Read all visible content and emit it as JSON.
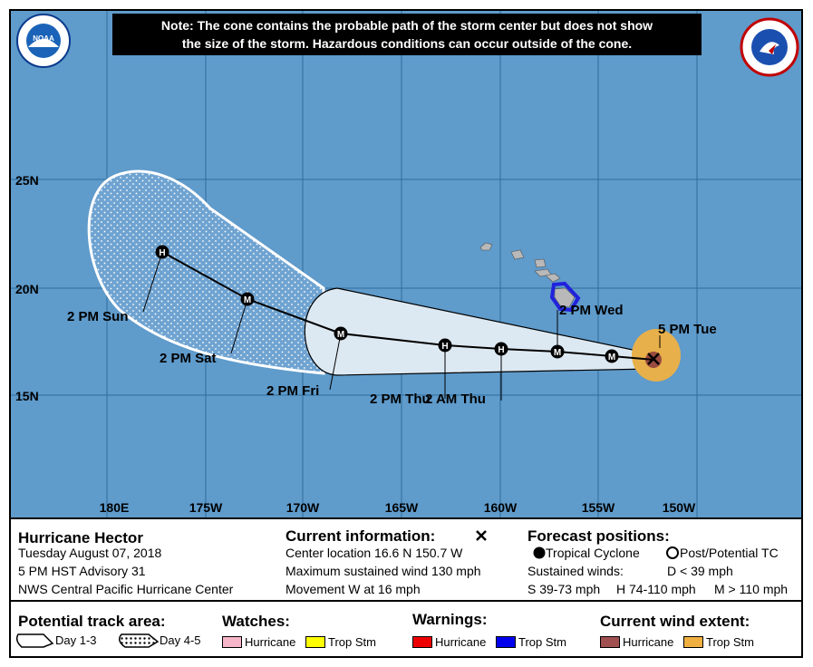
{
  "map": {
    "note_line1": "Note: The cone contains the probable path of the storm center but does not show",
    "note_line2": "the size of the storm. Hazardous conditions can occur outside of the cone.",
    "noaa_logo_text": "NOAA",
    "nws_logo_text": "NATIONAL WEATHER SERVICE",
    "lat_labels": [
      "25N",
      "20N",
      "15N"
    ],
    "lon_labels": [
      "180E",
      "175W",
      "170W",
      "165W",
      "160W",
      "155W",
      "150W"
    ],
    "colors": {
      "ocean": "#5f9bcb",
      "land": "#b9b9b9",
      "cone_day13": "#dde9f2",
      "cone_day45": "#97bdd9",
      "wind_extent": "#e8b04a",
      "hurricane_wind": "#9a4b3f",
      "warning_tropical_storm": "#2222dd"
    },
    "track_points": [
      {
        "time": "5 PM Tue",
        "symbol": "X"
      },
      {
        "time": "",
        "symbol": "M"
      },
      {
        "time": "2 PM Wed",
        "symbol": "M"
      },
      {
        "time": "2 AM Thu",
        "symbol": "H"
      },
      {
        "time": "2 PM Thu",
        "symbol": "H"
      },
      {
        "time": "2 PM Fri",
        "symbol": "M"
      },
      {
        "time": "2 PM Sat",
        "symbol": "M"
      },
      {
        "time": "2 PM Sun",
        "symbol": "H"
      }
    ]
  },
  "legend": {
    "storm_name": "Hurricane Hector",
    "date": "Tuesday August 07, 2018",
    "advisory": "5 PM HST Advisory 31",
    "center": "NWS Central Pacific Hurricane Center",
    "current_title": "Current information:",
    "current_icon": "x-mark-icon",
    "center_location": "Center location 16.6 N 150.7 W",
    "max_wind": "Maximum sustained wind 130 mph",
    "movement": "Movement W at 16 mph",
    "forecast_title": "Forecast positions:",
    "tropical_cyclone": "Tropical Cyclone",
    "post_tc": "Post/Potential TC",
    "sustained_winds": "Sustained winds:",
    "d_text": "D < 39 mph",
    "s_text": "S 39-73 mph",
    "h_text": "H 74-110 mph",
    "m_text": "M > 110 mph",
    "track_area_title": "Potential track area:",
    "day13": "Day 1-3",
    "day45": "Day 4-5",
    "watches_title": "Watches:",
    "watch_hurricane": "Hurricane",
    "watch_tropstm": "Trop Stm",
    "warnings_title": "Warnings:",
    "warn_hurricane": "Hurricane",
    "warn_tropstm": "Trop Stm",
    "wind_title": "Current wind extent:",
    "wind_hurricane": "Hurricane",
    "wind_tropstm": "Trop Stm",
    "colors": {
      "watch_hurricane": "#f6b6c8",
      "watch_tropstm": "#ffff00",
      "warn_hurricane": "#ee0000",
      "warn_tropstm": "#0000ee",
      "wind_hurricane": "#a05050",
      "wind_tropstm": "#f0b040"
    }
  }
}
